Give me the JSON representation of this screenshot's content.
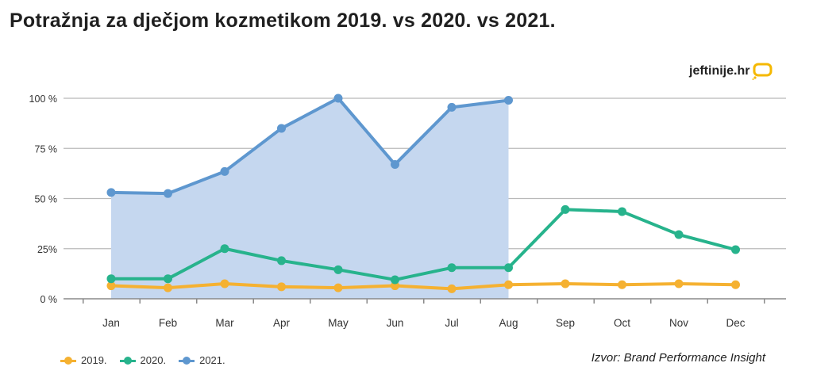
{
  "header": {
    "title": "Potražnja za dječjom kozmetikom 2019. vs 2020. vs 2021."
  },
  "brand": {
    "text": "jeftinije.hr",
    "icon": "speech-bubble-icon",
    "color": "#f5b800"
  },
  "source": "Izvor: Brand Performance Insight",
  "chart_data": {
    "type": "line",
    "title": "Potražnja za dječjom kozmetikom 2019. vs 2020. vs 2021.",
    "xlabel": "",
    "ylabel": "",
    "ylim": [
      0,
      100
    ],
    "grid": true,
    "legend_position": "bottom-left",
    "y_ticks": [
      {
        "value": 100,
        "label": "100 %"
      },
      {
        "value": 75,
        "label": "75 %"
      },
      {
        "value": 50,
        "label": "50 %"
      },
      {
        "value": 25,
        "label": "25%"
      },
      {
        "value": 0,
        "label": "0 %"
      }
    ],
    "categories": [
      "Jan",
      "Feb",
      "Mar",
      "Apr",
      "May",
      "Jun",
      "Jul",
      "Aug",
      "Sep",
      "Oct",
      "Nov",
      "Dec"
    ],
    "series": [
      {
        "name": "2019.",
        "color": "#f5b131",
        "filled": false,
        "values": [
          6.5,
          5.5,
          7.5,
          6,
          5.5,
          6.5,
          5,
          7,
          7.5,
          7,
          7.5,
          7
        ]
      },
      {
        "name": "2020.",
        "color": "#27b38c",
        "filled": false,
        "values": [
          10,
          10,
          25,
          19,
          14.5,
          9.5,
          15.5,
          15.5,
          44.5,
          43.5,
          32,
          24.5
        ]
      },
      {
        "name": "2021.",
        "color": "#5e97cf",
        "filled": true,
        "fill_color": "#c5d7ef",
        "values": [
          53,
          52.5,
          63.5,
          85,
          100,
          67,
          95.5,
          99,
          null,
          null,
          null,
          null
        ]
      }
    ]
  }
}
